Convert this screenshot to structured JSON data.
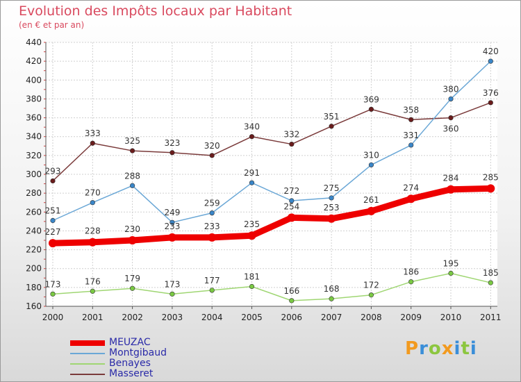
{
  "header": {
    "title": "Evolution des Impôts locaux par Habitant",
    "subtitle": "(en € et par an)"
  },
  "logo": {
    "text": "Proxiti",
    "letters": [
      {
        "ch": "P",
        "color": "#f29a1f"
      },
      {
        "ch": "r",
        "color": "#3a8ed8"
      },
      {
        "ch": "o",
        "color": "#8cc63f"
      },
      {
        "ch": "x",
        "color": "#f29a1f"
      },
      {
        "ch": "i",
        "color": "#3a8ed8"
      },
      {
        "ch": "t",
        "color": "#8cc63f"
      },
      {
        "ch": "i",
        "color": "#3a8ed8"
      }
    ]
  },
  "chart_data": {
    "type": "line",
    "title": "Evolution des Impôts locaux par Habitant",
    "subtitle": "(en € et par an)",
    "xlabel": "",
    "ylabel": "",
    "ylim": [
      160,
      440
    ],
    "yticks": [
      160,
      180,
      200,
      220,
      240,
      260,
      280,
      300,
      320,
      340,
      360,
      380,
      400,
      420,
      440
    ],
    "categories": [
      "2000",
      "2001",
      "2002",
      "2003",
      "2004",
      "2005",
      "2006",
      "2007",
      "2008",
      "2009",
      "2010",
      "2011"
    ],
    "grid": true,
    "legend_position": "bottom-left",
    "series": [
      {
        "name": "MEUZAC",
        "color": "#ee0000",
        "marker": "#ee0000",
        "values": [
          227,
          228,
          230,
          233,
          233,
          235,
          254,
          253,
          261,
          274,
          284,
          285
        ]
      },
      {
        "name": "Montgibaud",
        "color": "#6aa7d6",
        "marker": "#3a86c8",
        "values": [
          251,
          270,
          288,
          249,
          259,
          291,
          272,
          275,
          310,
          331,
          380,
          420
        ]
      },
      {
        "name": "Benayes",
        "color": "#9fd672",
        "marker": "#7ac943",
        "values": [
          173,
          176,
          179,
          173,
          177,
          181,
          166,
          168,
          172,
          186,
          195,
          185
        ]
      },
      {
        "name": "Masseret",
        "color": "#7a3a3a",
        "marker": "#6a1c1c",
        "values": [
          293,
          333,
          325,
          323,
          320,
          340,
          332,
          351,
          369,
          358,
          360,
          376
        ]
      }
    ]
  }
}
